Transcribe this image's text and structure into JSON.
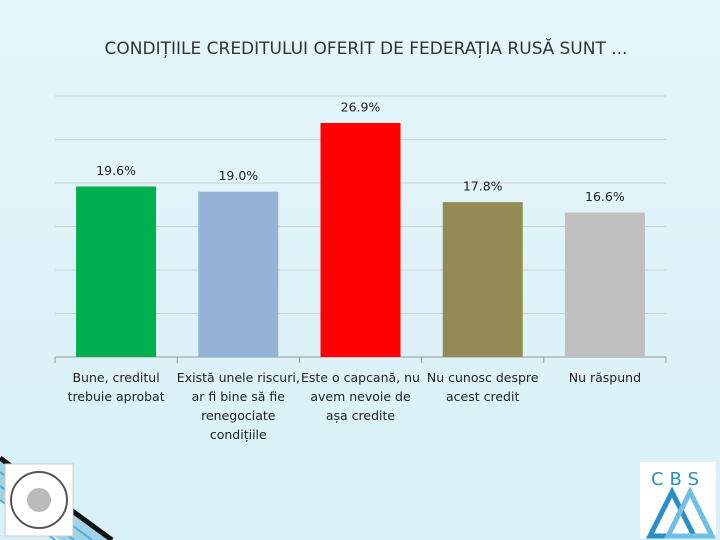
{
  "chart_data": {
    "type": "bar",
    "title": "CONDIȚIILE CREDITULUI OFERIT DE FEDERAȚIA RUSĂ SUNT ...",
    "categories": [
      "Bune, creditul trebuie aprobat",
      "Există unele riscuri, ar fi bine să fie renegociate condițiile",
      "Este o capcană, nu avem nevoie de așa credite",
      "Nu cunosc despre acest credit",
      "Nu răspund"
    ],
    "values": [
      19.6,
      19.0,
      26.9,
      17.8,
      16.6
    ],
    "value_labels": [
      "19.6%",
      "19.0%",
      "26.9%",
      "17.8%",
      "16.6%"
    ],
    "colors": [
      "#00b050",
      "#95b3d7",
      "#ff0000",
      "#948a54",
      "#bfbfbf"
    ],
    "ylim": [
      0,
      30
    ],
    "yticks": [
      0,
      5,
      10,
      15,
      20,
      25,
      30
    ],
    "grid": true
  },
  "logo": {
    "text": "CBS"
  }
}
